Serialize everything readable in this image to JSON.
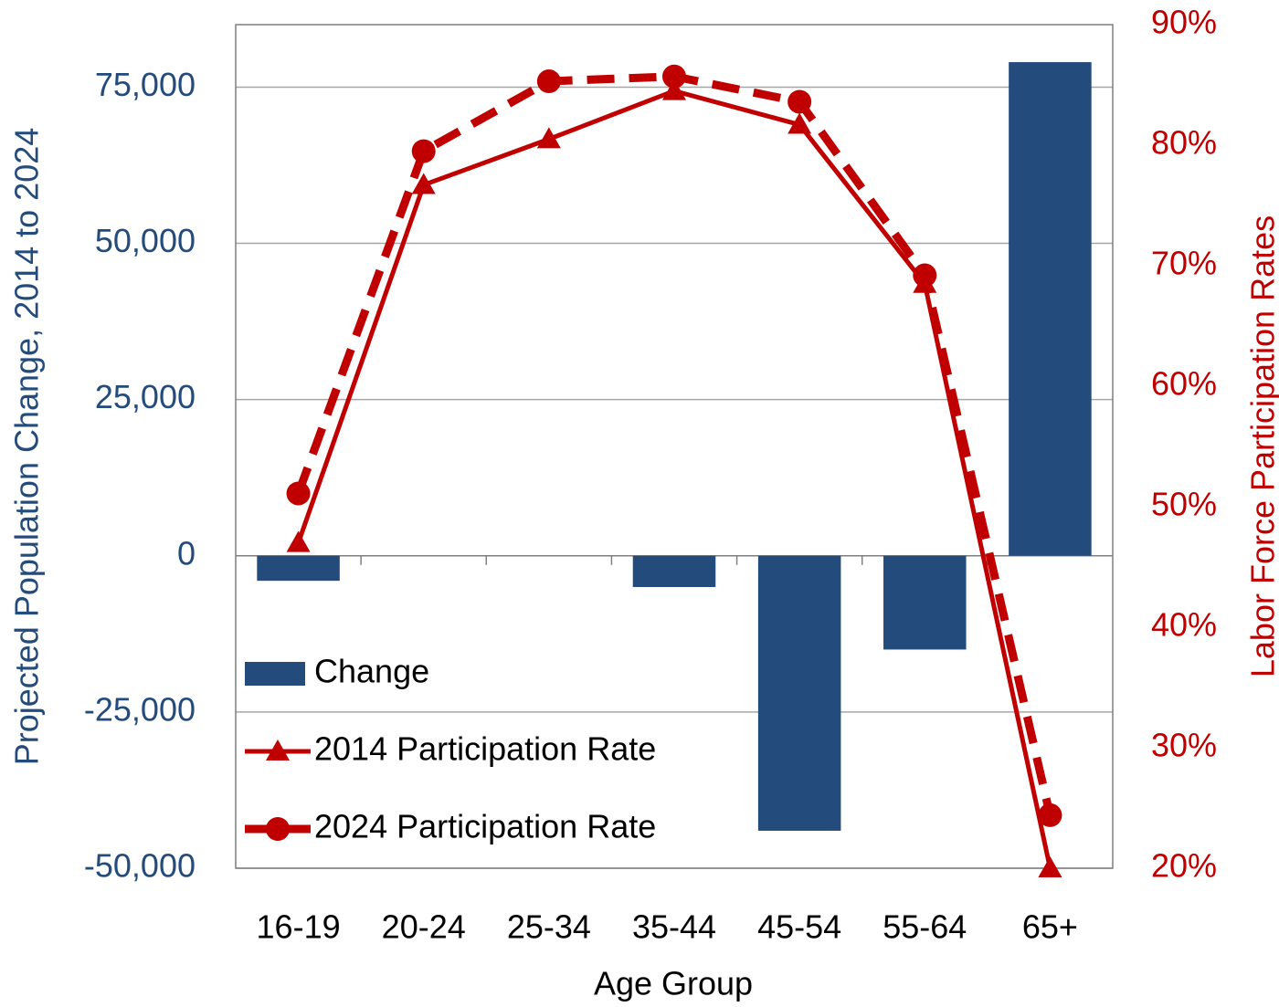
{
  "chart_data": {
    "type": "bar_line",
    "x_label": "Age Group",
    "y_label": "Projected Population Change, 2014 to 2024",
    "y2_label": "Labor Force Participation Rates",
    "categories": [
      "16-19",
      "20-24",
      "25-34",
      "35-44",
      "45-54",
      "55-64",
      "65+"
    ],
    "series": [
      {
        "name": "Change",
        "type": "bar",
        "color": "#234b7c",
        "values": [
          -4000,
          0,
          0,
          -5000,
          -44000,
          -15000,
          79000
        ]
      },
      {
        "name": "2014 Participation Rate",
        "type": "line",
        "axis": "y2",
        "color": "#c00000",
        "marker": "triangle",
        "dash": false,
        "values": [
          47.0,
          76.7,
          80.5,
          84.5,
          81.7,
          68.5,
          20.0
        ]
      },
      {
        "name": "2024 Participation Rate",
        "type": "line",
        "axis": "y2",
        "color": "#c00000",
        "marker": "circle",
        "dash": true,
        "values": [
          51.1,
          79.5,
          85.3,
          85.7,
          83.6,
          69.2,
          24.4
        ]
      }
    ],
    "ylim": [
      -50000,
      85000
    ],
    "yticks": [
      {
        "value": -50000,
        "label": "-50,000"
      },
      {
        "value": -25000,
        "label": "-25,000"
      },
      0,
      {
        "value": 25000,
        "label": "25,000"
      },
      {
        "value": 50000,
        "label": "50,000"
      },
      {
        "value": 75000,
        "label": "75,000"
      }
    ],
    "y2lim": [
      20,
      90
    ],
    "y2ticks": [
      {
        "value": 20,
        "label": "20%"
      },
      {
        "value": 30,
        "label": "30%"
      },
      {
        "value": 40,
        "label": "40%"
      },
      {
        "value": 50,
        "label": "50%"
      },
      {
        "value": 60,
        "label": "60%"
      },
      {
        "value": 70,
        "label": "70%"
      },
      {
        "value": 80,
        "label": "80%"
      },
      {
        "value": 90,
        "label": "90%"
      }
    ],
    "grid": true
  }
}
